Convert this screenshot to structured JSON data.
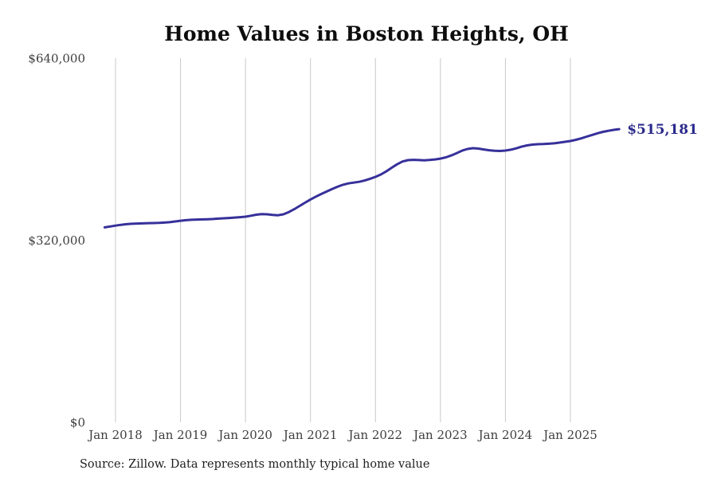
{
  "chart_data": {
    "type": "line",
    "title": "Home Values in Boston Heights, OH",
    "source": "Source: Zillow. Data represents monthly typical home value",
    "end_label": "$515,181",
    "end_value": 515181,
    "ylim": [
      0,
      640000
    ],
    "grid": "vertical-only",
    "legend": "none",
    "y_ticks": [
      {
        "label": "$0",
        "value": 0
      },
      {
        "label": "$320,000",
        "value": 320000
      },
      {
        "label": "$640,000",
        "value": 640000
      }
    ],
    "x_ticks": [
      {
        "label": "Jan 2018",
        "month_index": 2
      },
      {
        "label": "Jan 2019",
        "month_index": 14
      },
      {
        "label": "Jan 2020",
        "month_index": 26
      },
      {
        "label": "Jan 2021",
        "month_index": 38
      },
      {
        "label": "Jan 2022",
        "month_index": 50
      },
      {
        "label": "Jan 2023",
        "month_index": 62
      },
      {
        "label": "Jan 2024",
        "month_index": 74
      },
      {
        "label": "Jan 2025",
        "month_index": 86
      }
    ],
    "x": [
      "Nov 2017",
      "Dec 2017",
      "Jan 2018",
      "Feb 2018",
      "Mar 2018",
      "Apr 2018",
      "May 2018",
      "Jun 2018",
      "Jul 2018",
      "Aug 2018",
      "Sep 2018",
      "Oct 2018",
      "Nov 2018",
      "Dec 2018",
      "Jan 2019",
      "Feb 2019",
      "Mar 2019",
      "Apr 2019",
      "May 2019",
      "Jun 2019",
      "Jul 2019",
      "Aug 2019",
      "Sep 2019",
      "Oct 2019",
      "Nov 2019",
      "Dec 2019",
      "Jan 2020",
      "Feb 2020",
      "Mar 2020",
      "Apr 2020",
      "May 2020",
      "Jun 2020",
      "Jul 2020",
      "Aug 2020",
      "Sep 2020",
      "Oct 2020",
      "Nov 2020",
      "Dec 2020",
      "Jan 2021",
      "Feb 2021",
      "Mar 2021",
      "Apr 2021",
      "May 2021",
      "Jun 2021",
      "Jul 2021",
      "Aug 2021",
      "Sep 2021",
      "Oct 2021",
      "Nov 2021",
      "Dec 2021",
      "Jan 2022",
      "Feb 2022",
      "Mar 2022",
      "Apr 2022",
      "May 2022",
      "Jun 2022",
      "Jul 2022",
      "Aug 2022",
      "Sep 2022",
      "Oct 2022",
      "Nov 2022",
      "Dec 2022",
      "Jan 2023",
      "Feb 2023",
      "Mar 2023",
      "Apr 2023",
      "May 2023",
      "Jun 2023",
      "Jul 2023",
      "Aug 2023",
      "Sep 2023",
      "Oct 2023",
      "Nov 2023",
      "Dec 2023",
      "Jan 2024",
      "Feb 2024",
      "Mar 2024",
      "Apr 2024",
      "May 2024",
      "Jun 2024",
      "Jul 2024",
      "Aug 2024",
      "Sep 2024",
      "Oct 2024",
      "Nov 2024",
      "Dec 2024",
      "Jan 2025",
      "Feb 2025",
      "Mar 2025",
      "Apr 2025",
      "May 2025",
      "Jun 2025",
      "Jul 2025",
      "Aug 2025",
      "Sep 2025",
      "Oct 2025"
    ],
    "values": [
      342600,
      344100,
      345600,
      347000,
      348100,
      348900,
      349300,
      349600,
      349900,
      350100,
      350400,
      350900,
      351700,
      352900,
      354200,
      355200,
      355900,
      356300,
      356600,
      356900,
      357300,
      357900,
      358500,
      359100,
      359800,
      360500,
      361300,
      363000,
      364800,
      365800,
      365500,
      364500,
      363800,
      365500,
      369500,
      374500,
      380200,
      386000,
      391600,
      396600,
      401200,
      405600,
      409900,
      414000,
      417500,
      419800,
      421300,
      422600,
      424900,
      428000,
      431400,
      435600,
      441000,
      447500,
      453500,
      458400,
      460800,
      461300,
      460900,
      460500,
      461000,
      462000,
      463400,
      465600,
      469000,
      473100,
      477400,
      480400,
      481700,
      481100,
      479500,
      478100,
      477100,
      476800,
      477600,
      479100,
      481500,
      484400,
      486700,
      488000,
      488800,
      489100,
      489600,
      490300,
      491500,
      492900,
      494400,
      496500,
      499000,
      502000,
      505000,
      507900,
      510400,
      512300,
      513900,
      515181
    ],
    "colors": {
      "line": "#36309a",
      "end_label": "#2b2a8c",
      "grid": "#c8c8c8",
      "axis_text": "#3d3d3d",
      "title": "#0d0d0d",
      "source": "#1f1f1f",
      "background": "#ffffff"
    }
  }
}
